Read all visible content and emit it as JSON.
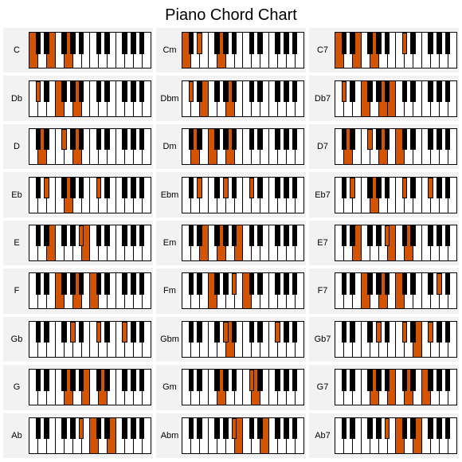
{
  "title": "Piano Chord Chart",
  "layout": {
    "white_keys_per_keyboard": 14,
    "black_key_width_ratio": 0.6,
    "highlight_color": "#d35400",
    "white_key_color": "#ffffff",
    "black_key_color": "#000000",
    "cell_bg": "#f2f2f2",
    "title_fontsize": 20,
    "label_fontsize": 11
  },
  "black_positions": [
    0,
    1,
    3,
    4,
    5,
    7,
    8,
    10,
    11,
    12
  ],
  "chords": [
    {
      "label": "C",
      "white_hl": [
        0,
        2,
        4
      ],
      "black_hl": []
    },
    {
      "label": "Cm",
      "white_hl": [
        0,
        4
      ],
      "black_hl": [
        1
      ]
    },
    {
      "label": "C7",
      "white_hl": [
        0,
        2,
        4
      ],
      "black_hl": [
        5
      ]
    },
    {
      "label": "Db",
      "white_hl": [
        3,
        5
      ],
      "black_hl": [
        0
      ]
    },
    {
      "label": "Dbm",
      "white_hl": [
        2,
        5
      ],
      "black_hl": [
        0
      ]
    },
    {
      "label": "Db7",
      "white_hl": [
        3,
        5,
        6
      ],
      "black_hl": [
        0
      ]
    },
    {
      "label": "D",
      "white_hl": [
        1,
        5
      ],
      "black_hl": [
        2
      ]
    },
    {
      "label": "Dm",
      "white_hl": [
        1,
        3,
        5
      ],
      "black_hl": []
    },
    {
      "label": "D7",
      "white_hl": [
        1,
        5,
        7
      ],
      "black_hl": [
        2
      ]
    },
    {
      "label": "Eb",
      "white_hl": [
        4
      ],
      "black_hl": [
        1,
        5
      ]
    },
    {
      "label": "Ebm",
      "white_hl": [],
      "black_hl": [
        1,
        3,
        5
      ]
    },
    {
      "label": "Eb7",
      "white_hl": [
        4
      ],
      "black_hl": [
        1,
        5,
        7
      ]
    },
    {
      "label": "E",
      "white_hl": [
        2,
        6
      ],
      "black_hl": [
        4
      ]
    },
    {
      "label": "Em",
      "white_hl": [
        2,
        4,
        6
      ],
      "black_hl": []
    },
    {
      "label": "E7",
      "white_hl": [
        2,
        6,
        8
      ],
      "black_hl": [
        4
      ]
    },
    {
      "label": "F",
      "white_hl": [
        3,
        5,
        7
      ],
      "black_hl": []
    },
    {
      "label": "Fm",
      "white_hl": [
        3,
        7
      ],
      "black_hl": [
        4
      ]
    },
    {
      "label": "F7",
      "white_hl": [
        3,
        5,
        7
      ],
      "black_hl": [
        8
      ]
    },
    {
      "label": "Gb",
      "white_hl": [],
      "black_hl": [
        3,
        5,
        7
      ]
    },
    {
      "label": "Gbm",
      "white_hl": [
        5
      ],
      "black_hl": [
        3,
        7
      ]
    },
    {
      "label": "Gb7",
      "white_hl": [
        9
      ],
      "black_hl": [
        3,
        5,
        7
      ]
    },
    {
      "label": "G",
      "white_hl": [
        4,
        6,
        8
      ],
      "black_hl": []
    },
    {
      "label": "Gm",
      "white_hl": [
        4,
        8
      ],
      "black_hl": [
        5
      ]
    },
    {
      "label": "G7",
      "white_hl": [
        4,
        6,
        8,
        10
      ],
      "black_hl": []
    },
    {
      "label": "Ab",
      "white_hl": [
        7,
        9
      ],
      "black_hl": [
        4
      ]
    },
    {
      "label": "Abm",
      "white_hl": [
        6,
        9
      ],
      "black_hl": [
        4
      ]
    },
    {
      "label": "Ab7",
      "white_hl": [
        7,
        9
      ],
      "black_hl": [
        4,
        10
      ]
    }
  ]
}
